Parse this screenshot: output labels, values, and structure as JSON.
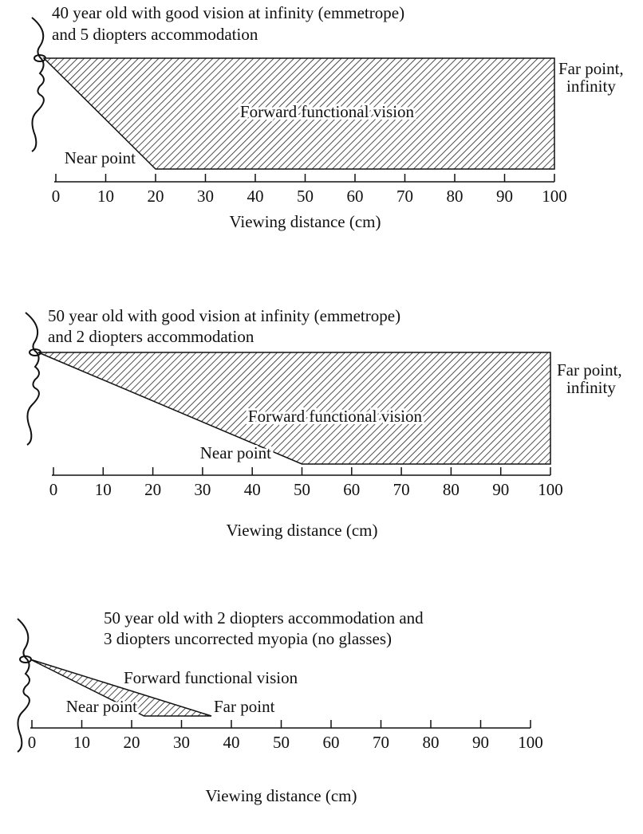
{
  "panels": [
    {
      "title_lines": [
        "40 year old with good vision at infinity (emmetrope)",
        "and 5 diopters accommodation"
      ],
      "region_label": "Forward functional vision",
      "near_point_label": "Near point",
      "far_point_label": [
        "Far point,",
        "infinity"
      ],
      "near_point": 20,
      "xlim": [
        0,
        100
      ],
      "xticks": [
        0,
        10,
        20,
        30,
        40,
        50,
        60,
        70,
        80,
        90,
        100
      ],
      "xlabel": "Viewing distance (cm)"
    },
    {
      "title_lines": [
        "50 year old with good vision at infinity (emmetrope)",
        "and 2 diopters accommodation"
      ],
      "region_label": "Forward functional vision",
      "near_point_label": "Near point",
      "far_point_label": [
        "Far point,",
        "infinity"
      ],
      "near_point": 50,
      "xlim": [
        0,
        100
      ],
      "xticks": [
        0,
        10,
        20,
        30,
        40,
        50,
        60,
        70,
        80,
        90,
        100
      ],
      "xlabel": "Viewing distance (cm)"
    },
    {
      "title_lines": [
        "50 year old with 2 diopters accommodation and",
        "3 diopters uncorrected myopia (no glasses)"
      ],
      "region_label": "Forward functional vision",
      "near_point_label": "Near point",
      "far_point_label": [
        "Far point"
      ],
      "near_point": 22.5,
      "far_point": 36,
      "xlim": [
        0,
        100
      ],
      "xticks": [
        0,
        10,
        20,
        30,
        40,
        50,
        60,
        70,
        80,
        90,
        100
      ],
      "xlabel": "Viewing distance (cm)"
    }
  ]
}
